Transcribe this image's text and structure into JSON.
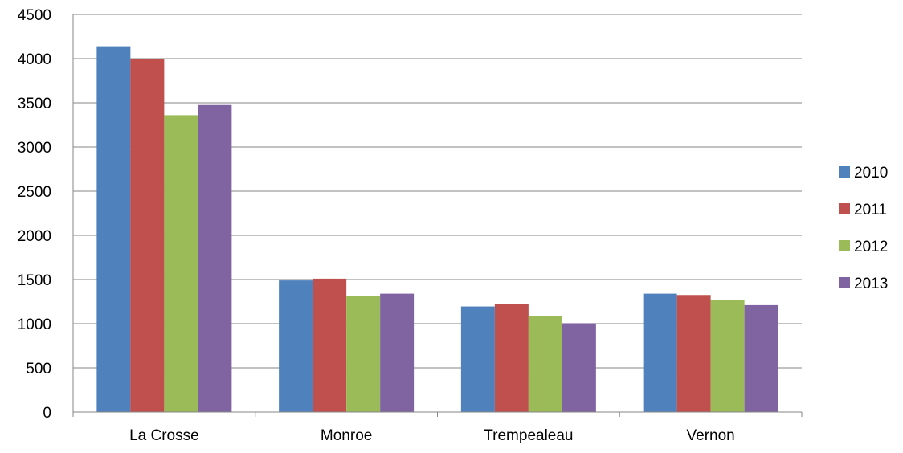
{
  "chart_data": {
    "type": "bar",
    "title": "",
    "xlabel": "",
    "ylabel": "",
    "categories": [
      "La Crosse",
      "Monroe",
      "Trempealeau",
      "Vernon"
    ],
    "series": [
      {
        "name": "2010",
        "color": "#4F81BD",
        "values": [
          4140,
          1490,
          1195,
          1340
        ]
      },
      {
        "name": "2011",
        "color": "#C0504D",
        "values": [
          4000,
          1510,
          1220,
          1325
        ]
      },
      {
        "name": "2012",
        "color": "#9BBB59",
        "values": [
          3360,
          1310,
          1085,
          1270
        ]
      },
      {
        "name": "2013",
        "color": "#8064A2",
        "values": [
          3475,
          1340,
          1005,
          1210
        ]
      }
    ],
    "ylim": [
      0,
      4500
    ],
    "yticks": [
      0,
      500,
      1000,
      1500,
      2000,
      2500,
      3000,
      3500,
      4000,
      4500
    ],
    "grid": true,
    "legend_position": "right"
  }
}
